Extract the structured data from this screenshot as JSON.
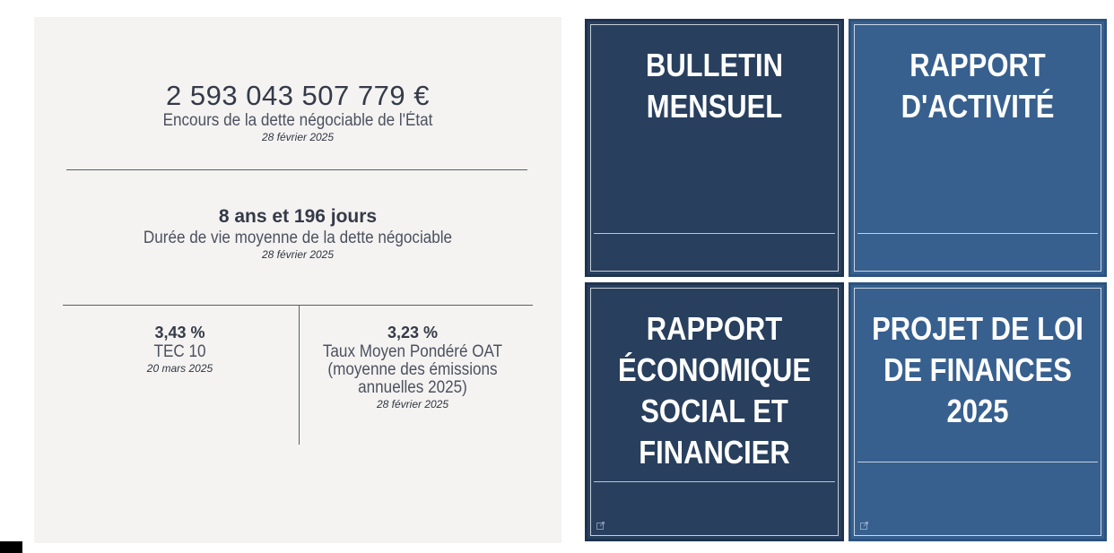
{
  "stats": {
    "encours": {
      "value": "2 593 043 507 779 €",
      "label": "Encours de la dette négociable de l'État",
      "date": "28 février 2025"
    },
    "duree_vie": {
      "value": "8 ans et 196 jours",
      "label": "Durée de vie moyenne de la dette négociable",
      "date": "28 février 2025"
    },
    "tec10": {
      "value": "3,43 %",
      "label": "TEC 10",
      "date": "20 mars 2025"
    },
    "oat": {
      "value": "3,23 %",
      "label_line1": "Taux Moyen Pondéré OAT",
      "label_line2": "(moyenne des émissions",
      "label_line3": "annuelles 2025)",
      "date": "28 février 2025"
    }
  },
  "tiles": [
    {
      "line1": "BULLETIN",
      "line2": "MENSUEL",
      "color": "#283f5e"
    },
    {
      "line1": "RAPPORT",
      "line2": "D'ACTIVITÉ",
      "color": "#37608f"
    },
    {
      "line1": "RAPPORT",
      "line2": "ÉCONOMIQUE",
      "line3": "SOCIAL ET",
      "line4": "FINANCIER",
      "color": "#283f5e",
      "icon": "external-link-icon"
    },
    {
      "line1": "PROJET DE LOI",
      "line2": "DE FINANCES",
      "line3": "2025",
      "color": "#37608f",
      "icon": "external-link-icon"
    }
  ]
}
